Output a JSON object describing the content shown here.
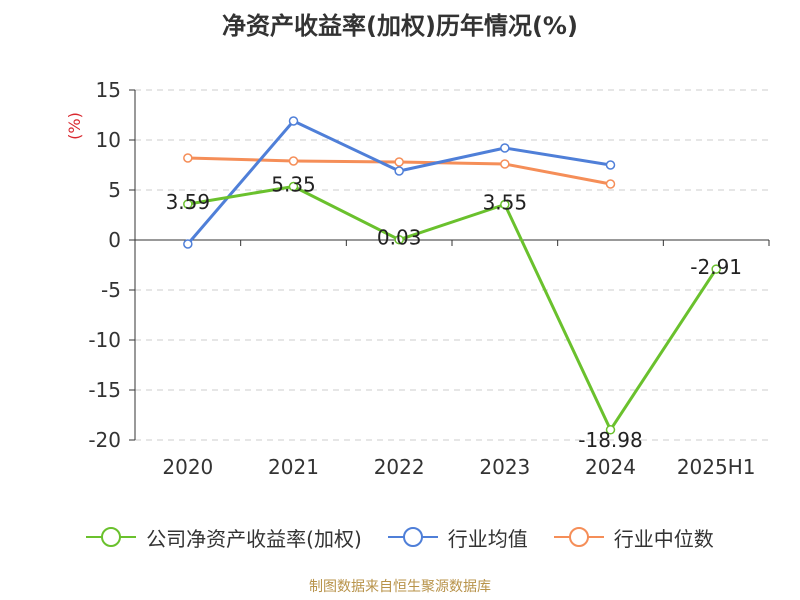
{
  "chart_data": {
    "type": "line",
    "title": "净资产收益率(加权)历年情况(%)",
    "ylabel": "(%)",
    "xlabel": "",
    "categories": [
      "2020",
      "2021",
      "2022",
      "2023",
      "2024",
      "2025H1"
    ],
    "ylim": [
      -20,
      15
    ],
    "yticks": [
      15,
      10,
      5,
      0,
      -5,
      -10,
      -15,
      -20
    ],
    "grid": true,
    "legend_position": "bottom",
    "series": [
      {
        "name": "公司净资产收益率(加权)",
        "color": "#6ac12d",
        "values": [
          3.59,
          5.35,
          0.03,
          3.55,
          -18.98,
          -2.91
        ],
        "labels": [
          "3.59",
          "5.35",
          "0.03",
          "3.55",
          "-18.98",
          "-2.91"
        ]
      },
      {
        "name": "行业均值",
        "color": "#4f7fd8",
        "values": [
          -0.4,
          11.9,
          6.9,
          9.2,
          7.5,
          null
        ],
        "labels": []
      },
      {
        "name": "行业中位数",
        "color": "#f58e58",
        "values": [
          8.2,
          7.9,
          7.8,
          7.6,
          5.6,
          null
        ],
        "labels": []
      }
    ]
  },
  "footer": {
    "source": "制图数据来自恒生聚源数据库"
  }
}
